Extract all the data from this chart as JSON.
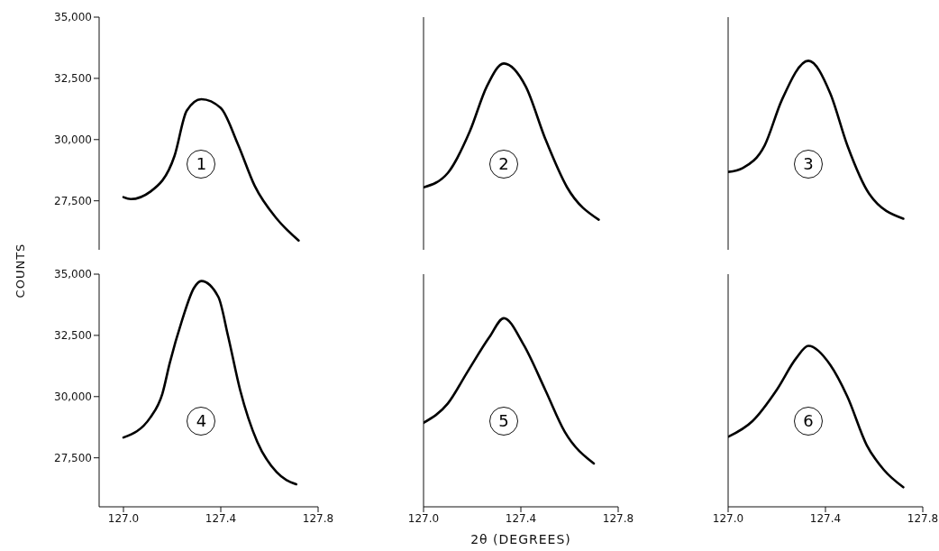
{
  "chart_data": [
    {
      "type": "line",
      "ylabel": "COUNTS",
      "xlim": [
        126.9,
        127.8
      ],
      "ylim": [
        25500,
        35000
      ],
      "yticks": [
        {
          "value": 27500,
          "label": "27,500"
        },
        {
          "value": 30000,
          "label": "30,000"
        },
        {
          "value": 32500,
          "label": "32,500"
        },
        {
          "value": 35000,
          "label": "35,000"
        }
      ],
      "tick_labels": "y",
      "marker": "none",
      "grid": false,
      "legend": false,
      "series": [
        {
          "name": "1",
          "color": "#000000",
          "x": [
            127.0,
            127.03,
            127.11,
            127.21,
            127.26,
            127.32,
            127.4,
            127.47,
            127.54,
            127.63,
            127.72
          ],
          "values": [
            27650,
            27570,
            27870,
            29340,
            31180,
            31650,
            31290,
            29820,
            28100,
            26770,
            25880
          ]
        }
      ]
    },
    {
      "type": "line",
      "xlim": [
        127.0,
        127.8
      ],
      "ylim": [
        25500,
        35000
      ],
      "tick_labels": false,
      "marker": "none",
      "grid": false,
      "legend": false,
      "series": [
        {
          "name": "2",
          "color": "#000000",
          "x": [
            127.0,
            127.1,
            127.19,
            127.26,
            127.33,
            127.42,
            127.5,
            127.59,
            127.72
          ],
          "values": [
            28050,
            28640,
            30330,
            32170,
            33110,
            32170,
            30040,
            28050,
            26730
          ]
        }
      ]
    },
    {
      "type": "line",
      "xlim": [
        127.0,
        127.8
      ],
      "ylim": [
        25500,
        35000
      ],
      "tick_labels": false,
      "marker": "none",
      "grid": false,
      "legend": false,
      "series": [
        {
          "name": "3",
          "color": "#000000",
          "x": [
            127.0,
            127.06,
            127.15,
            127.22,
            127.33,
            127.42,
            127.49,
            127.58,
            127.72
          ],
          "values": [
            28680,
            28840,
            29760,
            31600,
            33220,
            31880,
            29760,
            27780,
            26770
          ]
        }
      ]
    },
    {
      "type": "line",
      "xlim": [
        126.9,
        127.8
      ],
      "ylim": [
        25500,
        35000
      ],
      "xticks": [
        {
          "value": 127.0,
          "label": "127.0"
        },
        {
          "value": 127.4,
          "label": "127.4"
        },
        {
          "value": 127.8,
          "label": "127.8"
        }
      ],
      "yticks": [
        {
          "value": 27500,
          "label": "27,500"
        },
        {
          "value": 30000,
          "label": "30,000"
        },
        {
          "value": 32500,
          "label": "32,500"
        },
        {
          "value": 35000,
          "label": "35,000"
        }
      ],
      "marker": "none",
      "grid": false,
      "legend": false,
      "series": [
        {
          "name": "4",
          "color": "#000000",
          "x": [
            127.0,
            127.11,
            127.16,
            127.19,
            127.24,
            127.29,
            127.32,
            127.39,
            127.43,
            127.48,
            127.55,
            127.63,
            127.71
          ],
          "values": [
            28330,
            29140,
            30120,
            31360,
            33090,
            34440,
            34720,
            34070,
            32470,
            30250,
            28150,
            26910,
            26420
          ]
        }
      ]
    },
    {
      "type": "line",
      "xlabel": "2θ (DEGREES)",
      "xlim": [
        127.0,
        127.8
      ],
      "ylim": [
        25500,
        35000
      ],
      "xticks": [
        {
          "value": 127.0,
          "label": "127.0"
        },
        {
          "value": 127.4,
          "label": "127.4"
        },
        {
          "value": 127.8,
          "label": "127.8"
        }
      ],
      "tick_labels": "x",
      "marker": "none",
      "grid": false,
      "legend": false,
      "series": [
        {
          "name": "5",
          "color": "#000000",
          "x": [
            127.0,
            127.1,
            127.18,
            127.27,
            127.33,
            127.41,
            127.5,
            127.58,
            127.7
          ],
          "values": [
            28930,
            29720,
            31000,
            32420,
            33200,
            32140,
            30280,
            28570,
            27270
          ]
        }
      ]
    },
    {
      "type": "line",
      "xlim": [
        127.0,
        127.8
      ],
      "ylim": [
        25500,
        35000
      ],
      "xticks": [
        {
          "value": 127.0,
          "label": "127.0"
        },
        {
          "value": 127.4,
          "label": "127.4"
        },
        {
          "value": 127.8,
          "label": "127.8"
        }
      ],
      "tick_labels": "x",
      "marker": "none",
      "grid": false,
      "legend": false,
      "series": [
        {
          "name": "6",
          "color": "#000000",
          "x": [
            127.0,
            127.1,
            127.2,
            127.28,
            127.33,
            127.42,
            127.49,
            127.57,
            127.64,
            127.72
          ],
          "values": [
            28360,
            29000,
            30280,
            31570,
            32070,
            31290,
            30000,
            28010,
            27010,
            26300
          ]
        }
      ]
    }
  ]
}
